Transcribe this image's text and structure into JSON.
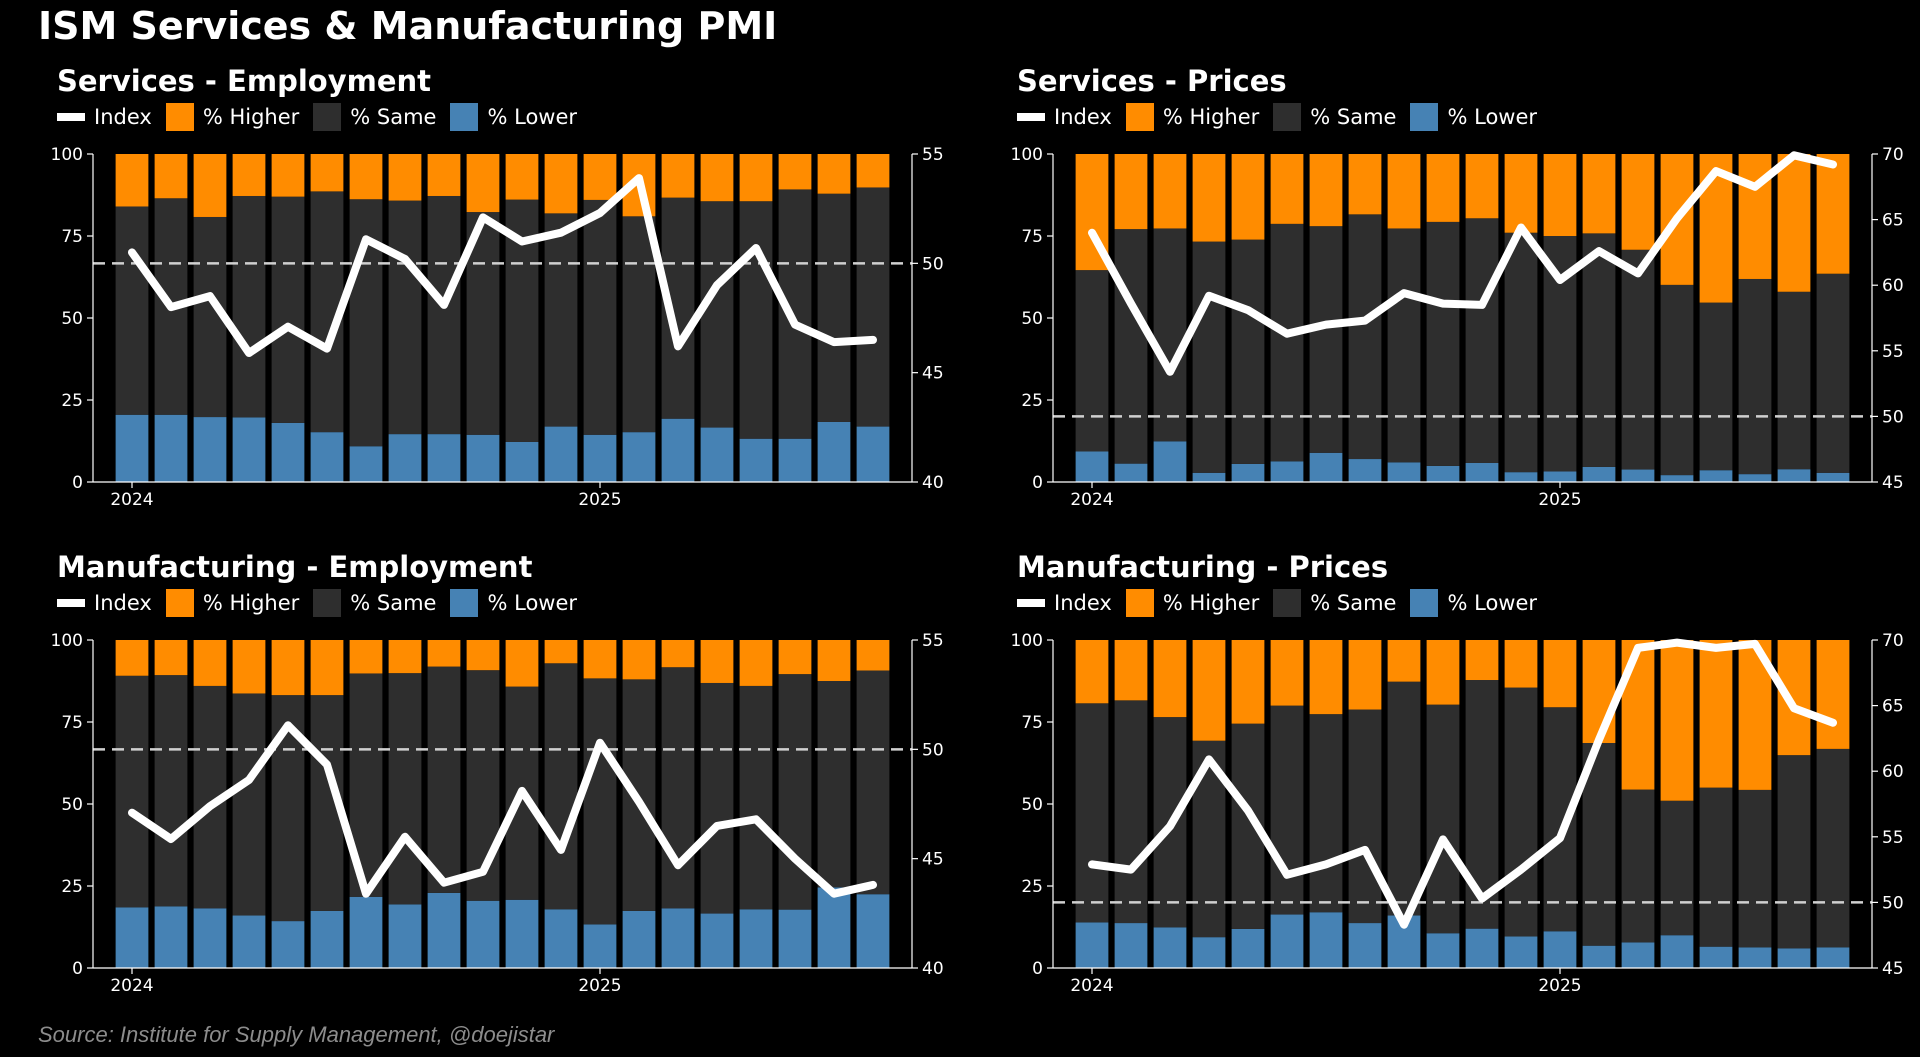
{
  "title": "ISM Services & Manufacturing PMI",
  "source": "Source: Institute for Supply Management, @doejistar",
  "colors": {
    "higher": "#ff8c00",
    "same": "#2e2e2e",
    "lower": "#4682b4",
    "index": "#ffffff"
  },
  "legend": {
    "index": "Index",
    "higher": "% Higher",
    "same": "% Same",
    "lower": "% Lower"
  },
  "chart_data": [
    {
      "type": "bar",
      "title": "Services - Employment",
      "x_tick_labels": [
        "2024",
        "2025"
      ],
      "months": [
        "2024-01",
        "2024-02",
        "2024-03",
        "2024-04",
        "2024-05",
        "2024-06",
        "2024-07",
        "2024-08",
        "2024-09",
        "2024-10",
        "2024-11",
        "2024-12",
        "2025-01",
        "2025-02",
        "2025-03",
        "2025-04",
        "2025-05",
        "2025-06",
        "2025-07",
        "2025-08"
      ],
      "ylim_left": [
        0,
        100
      ],
      "yticks_left": [
        0,
        25,
        50,
        75,
        100
      ],
      "ylim_right": [
        40,
        55
      ],
      "yticks_right": [
        40,
        45,
        50,
        55
      ],
      "reference_line": 50,
      "series": [
        {
          "name": "% Lower",
          "values": [
            20.5,
            20.5,
            19.8,
            19.7,
            18,
            15.2,
            10.9,
            14.6,
            14.6,
            14.4,
            12.2,
            16.9,
            14.4,
            15.2,
            19.3,
            16.6,
            13.2,
            13.2,
            18.3,
            16.9
          ]
        },
        {
          "name": "% Same",
          "values": [
            63.5,
            66,
            61,
            67.5,
            69,
            73.4,
            75.3,
            71.2,
            72.6,
            67.9,
            73.9,
            65,
            71.6,
            65.8,
            67.4,
            69,
            72.4,
            76,
            69.6,
            72.9
          ]
        },
        {
          "name": "% Higher",
          "values": [
            16,
            13.5,
            19.2,
            12.8,
            13,
            11.4,
            13.8,
            14.2,
            12.8,
            17.7,
            13.9,
            18.1,
            14,
            19,
            13.3,
            14.4,
            14.4,
            10.8,
            12.1,
            10.2
          ]
        },
        {
          "name": "Index",
          "values": [
            50.5,
            48.0,
            48.5,
            45.9,
            47.1,
            46.1,
            51.1,
            50.2,
            48.1,
            52.1,
            51.0,
            51.4,
            52.3,
            53.9,
            46.2,
            49.0,
            50.7,
            47.2,
            46.4,
            46.5
          ]
        }
      ]
    },
    {
      "type": "bar",
      "title": "Services - Prices",
      "x_tick_labels": [
        "2024",
        "2025"
      ],
      "months": [
        "2024-01",
        "2024-02",
        "2024-03",
        "2024-04",
        "2024-05",
        "2024-06",
        "2024-07",
        "2024-08",
        "2024-09",
        "2024-10",
        "2024-11",
        "2024-12",
        "2025-01",
        "2025-02",
        "2025-03",
        "2025-04",
        "2025-05",
        "2025-06",
        "2025-07",
        "2025-08"
      ],
      "ylim_left": [
        0,
        100
      ],
      "yticks_left": [
        0,
        25,
        50,
        75,
        100
      ],
      "ylim_right": [
        45,
        70
      ],
      "yticks_right": [
        45,
        50,
        55,
        60,
        65,
        70
      ],
      "reference_line": 50,
      "series": [
        {
          "name": "% Lower",
          "values": [
            9.3,
            5.6,
            12.4,
            2.8,
            5.5,
            6.3,
            8.9,
            7,
            6,
            4.9,
            5.8,
            3,
            3.2,
            4.6,
            3.8,
            2.1,
            3.6,
            2.4,
            3.9,
            2.8
          ]
        },
        {
          "name": "% Same",
          "values": [
            55.3,
            71.5,
            64.9,
            70.5,
            68.4,
            72.4,
            69.1,
            74.6,
            71.3,
            74.4,
            74.6,
            73,
            71.8,
            71.2,
            67,
            58,
            51.1,
            59.5,
            54.1,
            60.7
          ]
        },
        {
          "name": "% Higher",
          "values": [
            35.4,
            22.9,
            22.7,
            26.7,
            26.1,
            21.3,
            22,
            18.4,
            22.7,
            20.7,
            19.6,
            24,
            25,
            24.2,
            29.2,
            39.9,
            45.3,
            38.1,
            42,
            36.5
          ]
        },
        {
          "name": "Index",
          "values": [
            64.0,
            58.6,
            53.4,
            59.2,
            58.1,
            56.3,
            57.0,
            57.3,
            59.4,
            58.6,
            58.5,
            64.4,
            60.4,
            62.6,
            60.9,
            65.1,
            68.7,
            67.5,
            69.9,
            69.2
          ]
        }
      ]
    },
    {
      "type": "bar",
      "title": "Manufacturing - Employment",
      "x_tick_labels": [
        "2024",
        "2025"
      ],
      "months": [
        "2024-01",
        "2024-02",
        "2024-03",
        "2024-04",
        "2024-05",
        "2024-06",
        "2024-07",
        "2024-08",
        "2024-09",
        "2024-10",
        "2024-11",
        "2024-12",
        "2025-01",
        "2025-02",
        "2025-03",
        "2025-04",
        "2025-05",
        "2025-06",
        "2025-07",
        "2025-08"
      ],
      "ylim_left": [
        0,
        100
      ],
      "yticks_left": [
        0,
        25,
        50,
        75,
        100
      ],
      "ylim_right": [
        40,
        55
      ],
      "yticks_right": [
        40,
        45,
        50,
        55
      ],
      "reference_line": 50,
      "series": [
        {
          "name": "% Lower",
          "values": [
            18.5,
            18.8,
            18.2,
            16,
            14.3,
            17.4,
            21.7,
            19.4,
            22.9,
            20.5,
            20.8,
            17.9,
            13.3,
            17.4,
            18.2,
            16.6,
            17.9,
            17.8,
            24.6,
            22.5
          ]
        },
        {
          "name": "% Same",
          "values": [
            70.6,
            70.5,
            67.8,
            67.7,
            68.9,
            65.8,
            68.1,
            70.5,
            69,
            70.3,
            65,
            75,
            75,
            70.6,
            73.5,
            70.3,
            68.1,
            71.8,
            62.9,
            68.2
          ]
        },
        {
          "name": "% Higher",
          "values": [
            10.9,
            10.7,
            14,
            16.3,
            16.8,
            16.8,
            10.2,
            10.1,
            8.1,
            9.2,
            14.2,
            7.1,
            11.7,
            12,
            8.3,
            13.1,
            14,
            10.4,
            12.5,
            9.3
          ]
        },
        {
          "name": "Index",
          "values": [
            47.1,
            45.9,
            47.4,
            48.6,
            51.1,
            49.3,
            43.4,
            46.0,
            43.9,
            44.4,
            48.1,
            45.4,
            50.3,
            47.6,
            44.7,
            46.5,
            46.8,
            45.0,
            43.4,
            43.8
          ]
        }
      ]
    },
    {
      "type": "bar",
      "title": "Manufacturing - Prices",
      "x_tick_labels": [
        "2024",
        "2025"
      ],
      "months": [
        "2024-01",
        "2024-02",
        "2024-03",
        "2024-04",
        "2024-05",
        "2024-06",
        "2024-07",
        "2024-08",
        "2024-09",
        "2024-10",
        "2024-11",
        "2024-12",
        "2025-01",
        "2025-02",
        "2025-03",
        "2025-04",
        "2025-05",
        "2025-06",
        "2025-07",
        "2025-08"
      ],
      "ylim_left": [
        0,
        100
      ],
      "yticks_left": [
        0,
        25,
        50,
        75,
        100
      ],
      "ylim_right": [
        45,
        70
      ],
      "yticks_right": [
        45,
        50,
        55,
        60,
        65,
        70
      ],
      "reference_line": 50,
      "series": [
        {
          "name": "% Lower",
          "values": [
            13.9,
            13.7,
            12.4,
            9.4,
            11.9,
            16.3,
            17,
            13.7,
            16,
            10.6,
            12,
            9.6,
            11.2,
            6.8,
            7.8,
            10,
            6.5,
            6.3,
            6,
            6.3
          ]
        },
        {
          "name": "% Same",
          "values": [
            66.8,
            67.9,
            64.1,
            59.9,
            62.6,
            63.7,
            60.4,
            65.1,
            71.3,
            69.7,
            75.8,
            75.9,
            68.3,
            61.8,
            46.6,
            41,
            48.5,
            48,
            58.9,
            60.5
          ]
        },
        {
          "name": "% Higher",
          "values": [
            19.3,
            18.4,
            23.5,
            30.7,
            25.5,
            20,
            22.6,
            21.2,
            12.7,
            19.7,
            12.2,
            14.5,
            20.5,
            31.4,
            45.6,
            49,
            45,
            45.7,
            35.1,
            33.2
          ]
        },
        {
          "name": "Index",
          "values": [
            52.9,
            52.5,
            55.8,
            60.9,
            57.0,
            52.1,
            52.9,
            54.0,
            48.3,
            54.8,
            50.3,
            52.5,
            54.9,
            62.4,
            69.4,
            69.8,
            69.4,
            69.7,
            64.8,
            63.7
          ]
        }
      ]
    }
  ]
}
